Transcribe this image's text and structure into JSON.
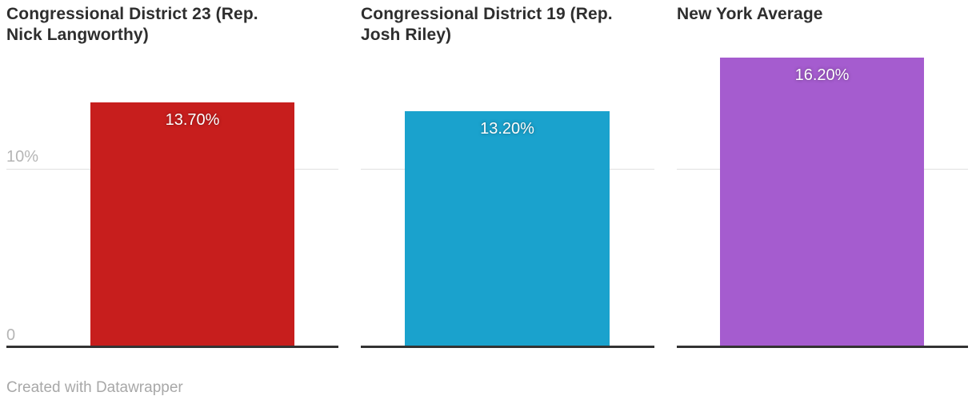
{
  "chart_data": {
    "type": "bar",
    "title": "",
    "categories": [
      "Congressional District 23 (Rep. Nick Langworthy)",
      "Congressional District 19 (Rep. Josh Riley)",
      "New York Average"
    ],
    "values": [
      13.7,
      13.2,
      16.2
    ],
    "unit": "%",
    "ylim": [
      0,
      18
    ],
    "grid": true,
    "legend": "none",
    "panels": [
      {
        "title": "Congressional District 23 (Rep.\nNick Langworthy)",
        "value": 13.7,
        "value_label": "13.70%",
        "color": "#c71e1d"
      },
      {
        "title": "Congressional District 19 (Rep.\nJosh Riley)",
        "value": 13.2,
        "value_label": "13.20%",
        "color": "#1aa2cd"
      },
      {
        "title": "New York Average",
        "value": 16.2,
        "value_label": "16.20%",
        "color": "#a55ccf"
      }
    ],
    "yaxis": {
      "ticks": [
        {
          "value": 10,
          "label": "10%"
        },
        {
          "value": 0,
          "label": "0"
        }
      ]
    }
  },
  "footer": {
    "credit": "Created with Datawrapper"
  },
  "colors": {
    "bar_red": "#c71e1d",
    "bar_blue": "#1aa2cd",
    "bar_purple": "#a55ccf",
    "gridline": "#e0e0e0",
    "baseline": "#333333",
    "title_text": "#2e2e2e",
    "tick_text": "#b5b5b5",
    "credit_text": "#a8a8a8",
    "value_label_text": "#ffffff"
  }
}
